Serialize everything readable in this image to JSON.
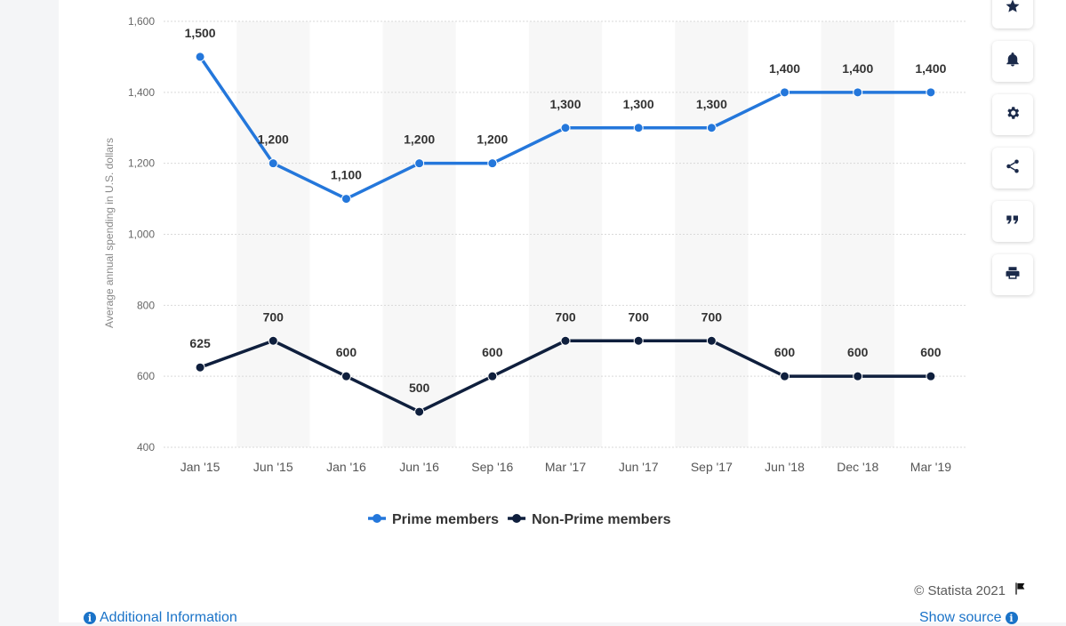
{
  "chart_data": {
    "type": "line",
    "categories": [
      "Jan '15",
      "Jun '15",
      "Jan '16",
      "Jun '16",
      "Sep '16",
      "Mar '17",
      "Jun '17",
      "Sep '17",
      "Jun '18",
      "Dec '18",
      "Mar '19"
    ],
    "series": [
      {
        "name": "Prime members",
        "values": [
          1500,
          1200,
          1100,
          1200,
          1200,
          1300,
          1300,
          1300,
          1400,
          1400,
          1400
        ],
        "labels": [
          "1,500",
          "1,200",
          "1,100",
          "1,200",
          "1,200",
          "1,300",
          "1,300",
          "1,300",
          "1,400",
          "1,400",
          "1,400"
        ],
        "color": "#2477db"
      },
      {
        "name": "Non-Prime members",
        "values": [
          625,
          700,
          600,
          500,
          600,
          700,
          700,
          700,
          600,
          600,
          600
        ],
        "labels": [
          "625",
          "700",
          "600",
          "500",
          "600",
          "700",
          "700",
          "700",
          "600",
          "600",
          "600"
        ],
        "color": "#0f1f3d"
      }
    ],
    "ylabel": "Average annual spending in U.S. dollars",
    "ylim": [
      400,
      1600
    ],
    "yticks": [
      400,
      600,
      800,
      1000,
      1200,
      1400,
      1600
    ],
    "ytick_labels": [
      "400",
      "600",
      "800",
      "1,000",
      "1,200",
      "1,400",
      "1,600"
    ],
    "grid": true,
    "legend_position": "bottom"
  },
  "toolbar": {
    "icons": [
      "star-icon",
      "bell-icon",
      "gear-icon",
      "share-icon",
      "quote-icon",
      "print-icon"
    ]
  },
  "footer": {
    "credit": "© Statista 2021",
    "additional_info": "Additional Information",
    "show_source": "Show source"
  },
  "colors": {
    "prime": "#2477db",
    "non_prime": "#0f1f3d",
    "link": "#1a73c8"
  }
}
